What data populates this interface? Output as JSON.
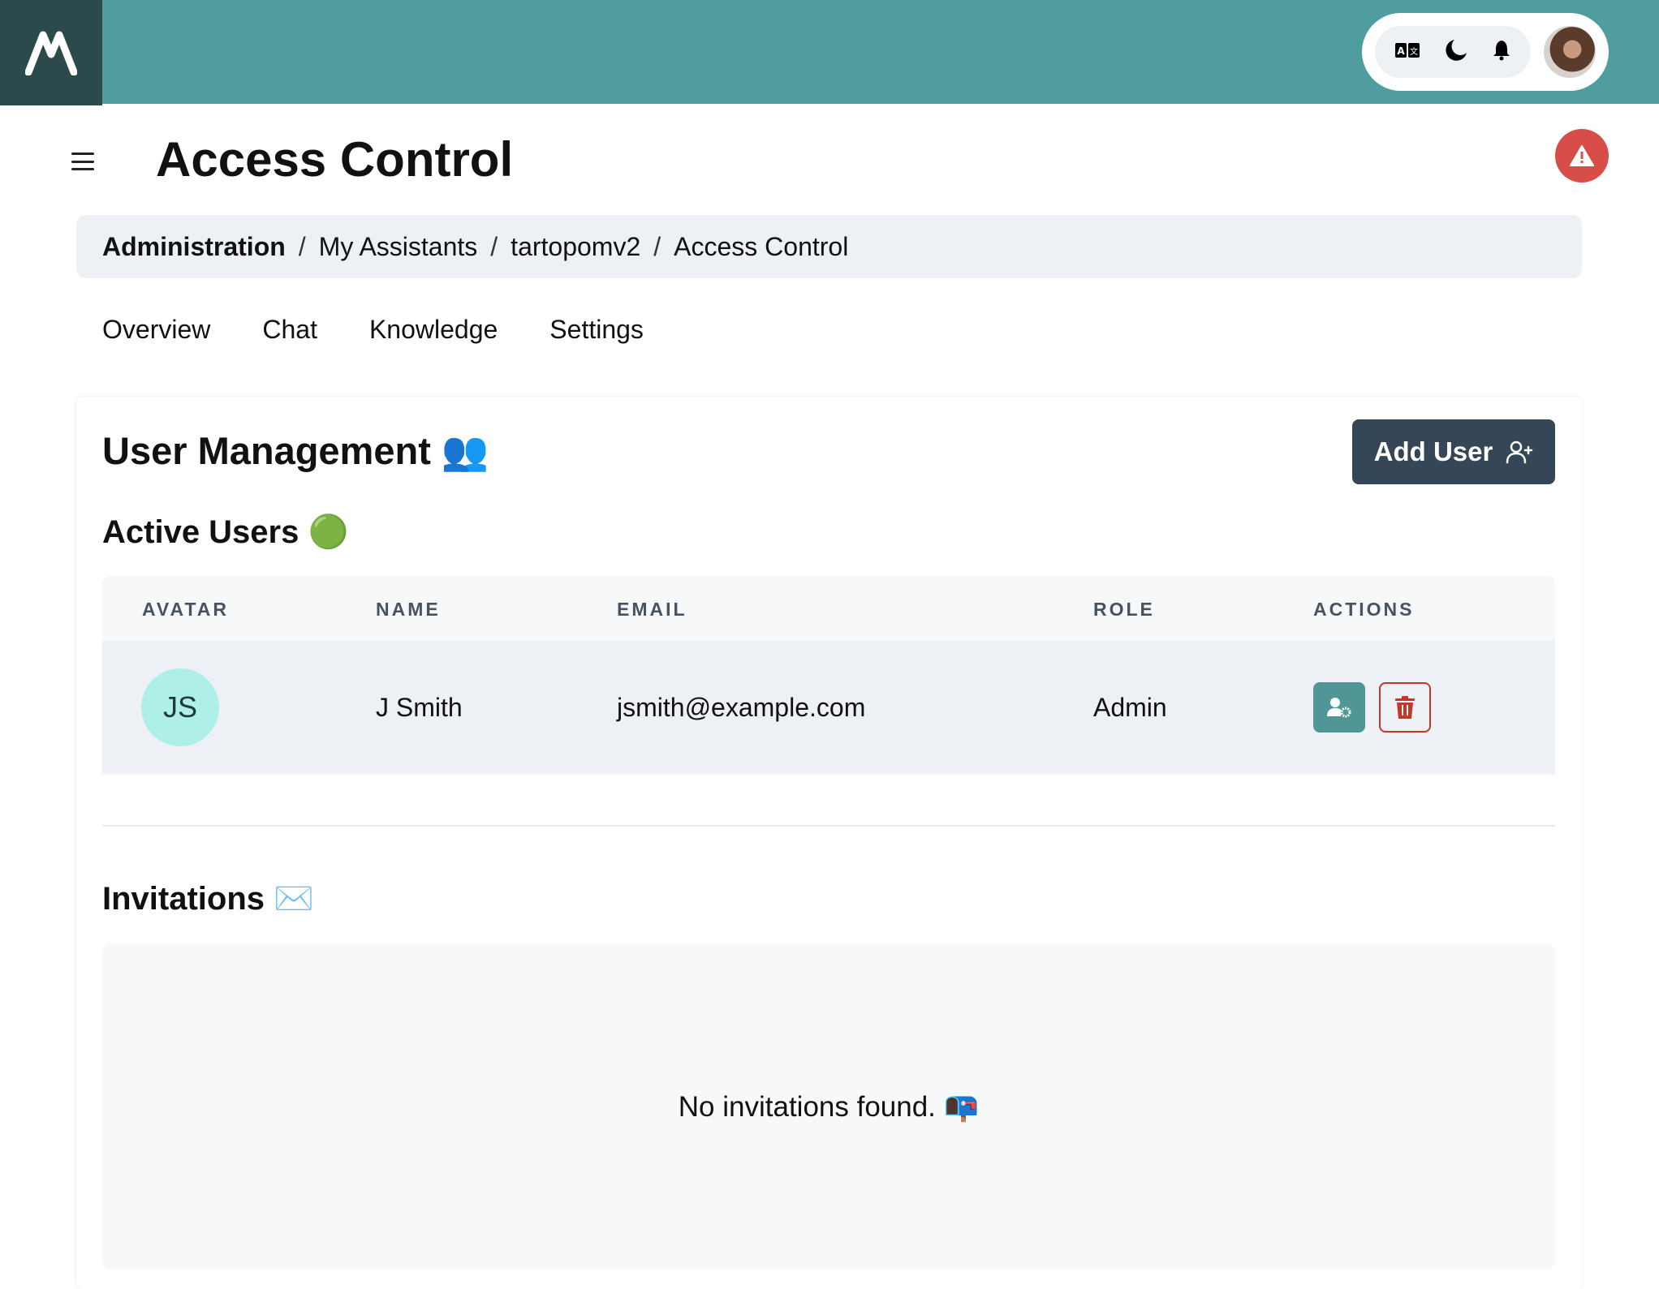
{
  "header": {
    "logo": "M",
    "icons": [
      "translate-icon",
      "moon-icon",
      "bell-icon"
    ],
    "colors": {
      "bar": "#509d9f",
      "logo_bg": "#2c4a4b"
    }
  },
  "page": {
    "title": "Access Control"
  },
  "breadcrumb": [
    "Administration",
    "My Assistants",
    "tartopomv2",
    "Access Control"
  ],
  "tabs": [
    "Overview",
    "Chat",
    "Knowledge",
    "Settings"
  ],
  "user_management": {
    "title": "User Management 👥",
    "add_user_label": "Add User"
  },
  "active_users": {
    "title": "Active Users 🟢",
    "columns": [
      "AVATAR",
      "NAME",
      "EMAIL",
      "ROLE",
      "ACTIONS"
    ],
    "rows": [
      {
        "initials": "JS",
        "name": "J Smith",
        "email": "jsmith@example.com",
        "role": "Admin"
      }
    ]
  },
  "invitations": {
    "title": "Invitations ✉️",
    "empty": "No invitations found. 📭"
  }
}
